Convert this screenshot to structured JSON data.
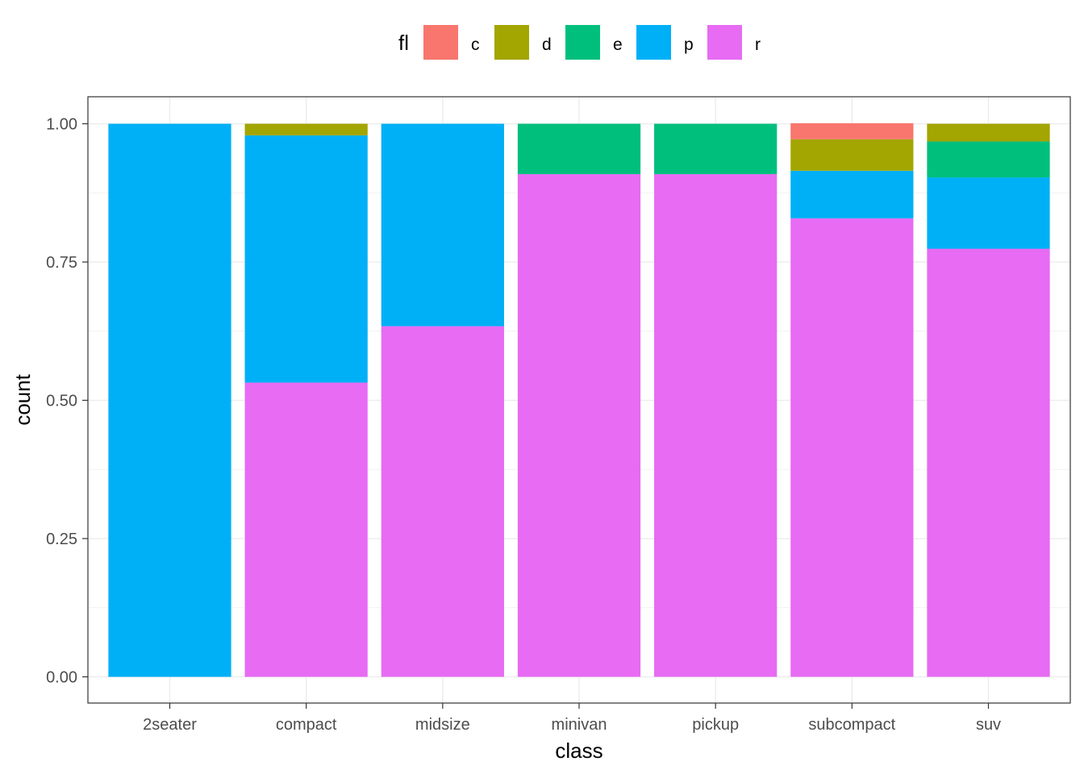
{
  "chart_data": {
    "type": "bar",
    "stacked": true,
    "position": "fill",
    "xlabel": "class",
    "ylabel": "count",
    "ylim": [
      0,
      1
    ],
    "grid": true,
    "legend_position": "top",
    "legend_title": "fl",
    "categories": [
      "2seater",
      "compact",
      "midsize",
      "minivan",
      "pickup",
      "subcompact",
      "suv"
    ],
    "y_ticks": [
      "0.00",
      "0.25",
      "0.50",
      "0.75",
      "1.00"
    ],
    "series": [
      {
        "name": "c",
        "color": "#F8766D",
        "values": [
          0,
          0,
          0,
          0,
          0,
          0.029,
          0
        ]
      },
      {
        "name": "d",
        "color": "#A3A500",
        "values": [
          0,
          0.021,
          0,
          0,
          0,
          0.057,
          0.032
        ]
      },
      {
        "name": "e",
        "color": "#00BF7D",
        "values": [
          0,
          0,
          0,
          0.091,
          0.091,
          0,
          0.065
        ]
      },
      {
        "name": "p",
        "color": "#00B0F6",
        "values": [
          1.0,
          0.447,
          0.366,
          0,
          0,
          0.086,
          0.129
        ]
      },
      {
        "name": "r",
        "color": "#E76BF3",
        "values": [
          0,
          0.532,
          0.634,
          0.909,
          0.909,
          0.829,
          0.774
        ]
      }
    ]
  }
}
